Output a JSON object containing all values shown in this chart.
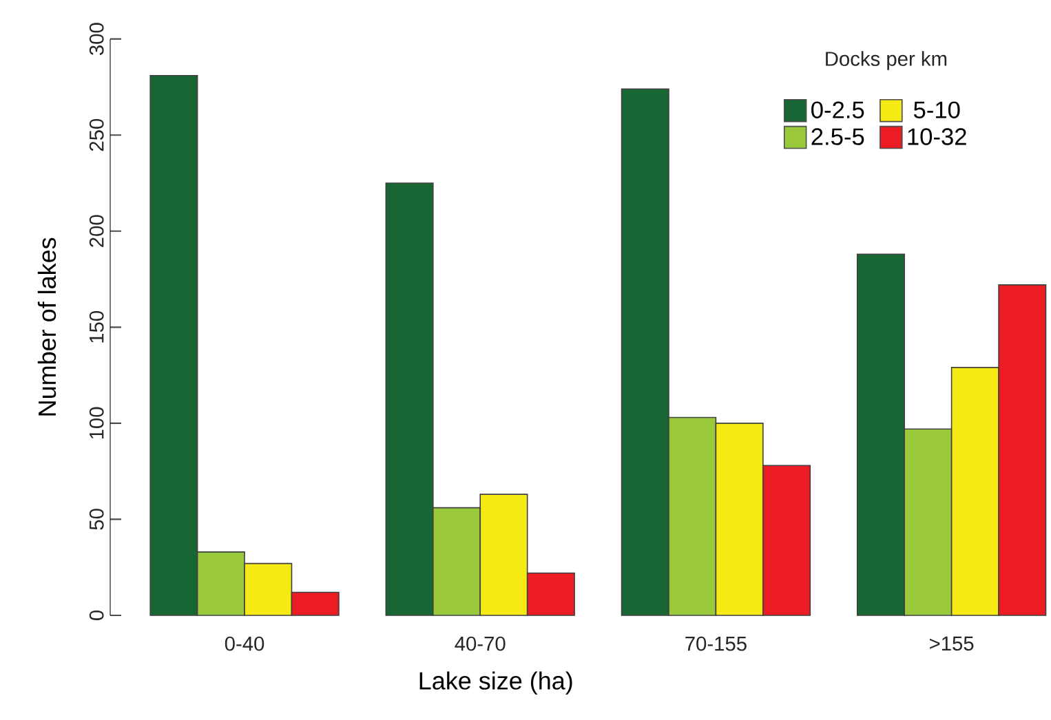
{
  "chart_data": {
    "type": "bar",
    "xlabel": "Lake size (ha)",
    "ylabel": "Number of lakes",
    "legend_title": "Docks per km",
    "legend": "top right",
    "categories": [
      "0-40",
      "40-70",
      "70-155",
      ">155"
    ],
    "ylim": [
      0,
      300
    ],
    "yticks": [
      0,
      50,
      100,
      150,
      200,
      250,
      300
    ],
    "series": [
      {
        "name": "0-2.5",
        "color": "#186634",
        "values": [
          281,
          225,
          274,
          188
        ]
      },
      {
        "name": "2.5-5",
        "color": "#9aca3c",
        "values": [
          33,
          56,
          103,
          97
        ]
      },
      {
        "name": "5-10",
        "color": "#f5ea14",
        "values": [
          27,
          63,
          100,
          129
        ]
      },
      {
        "name": "10-32",
        "color": "#ec1c24",
        "values": [
          12,
          22,
          78,
          172
        ]
      }
    ]
  }
}
